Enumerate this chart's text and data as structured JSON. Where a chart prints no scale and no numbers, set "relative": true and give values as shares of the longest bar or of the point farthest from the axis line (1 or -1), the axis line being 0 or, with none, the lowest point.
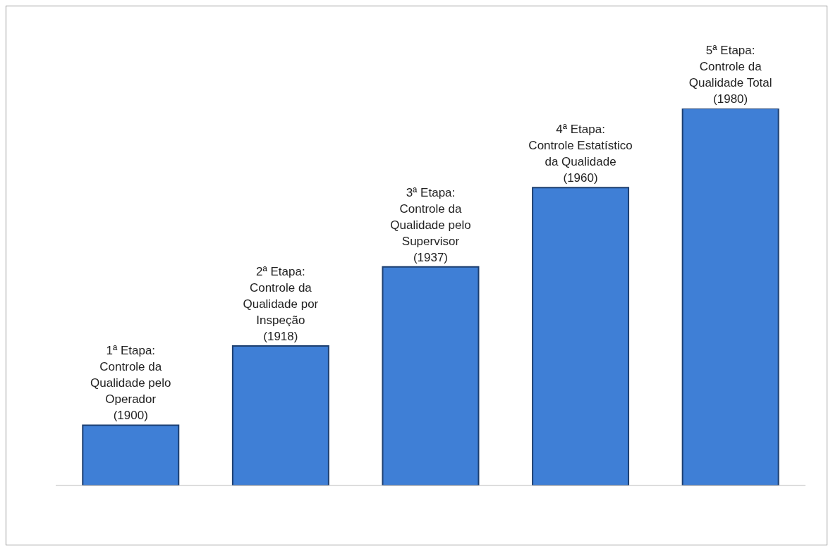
{
  "chart_data": {
    "type": "bar",
    "relative": true,
    "color": "#3f7fd6",
    "categories": [
      "1ª Etapa:\nControle da\nQualidade pelo\nOperador\n(1900)",
      "2ª Etapa:\nControle da\nQualidade por\nInspeção\n(1918)",
      "3ª Etapa:\nControle da\nQualidade pelo\nSupervisor\n(1937)",
      "4ª Etapa:\nControle Estatístico\nda Qualidade\n(1960)",
      "5ª Etapa:\nControle da\nQualidade Total\n(1980)"
    ],
    "values": [
      0.16,
      0.37,
      0.58,
      0.79,
      1
    ]
  }
}
